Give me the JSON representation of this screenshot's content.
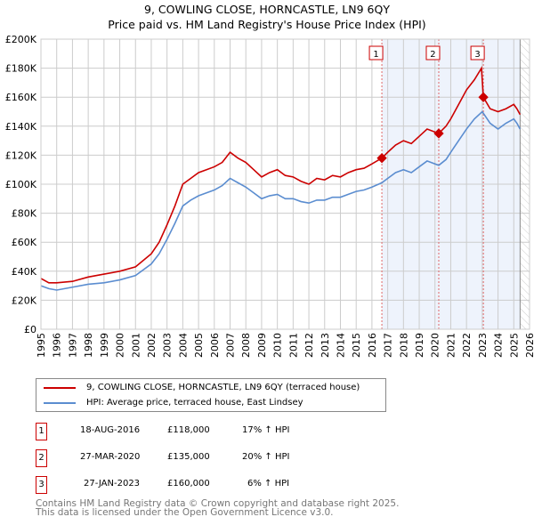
{
  "chart_data": {
    "type": "line",
    "title": "9, COWLING CLOSE, HORNCASTLE, LN9 6QY",
    "subtitle": "Price paid vs. HM Land Registry's House Price Index (HPI)",
    "xlim": [
      1995,
      2026
    ],
    "ylim": [
      0,
      200000
    ],
    "x_ticks": [
      "1995",
      "1996",
      "1997",
      "1998",
      "1999",
      "2000",
      "2001",
      "2002",
      "2003",
      "2004",
      "2005",
      "2006",
      "2007",
      "2008",
      "2009",
      "2010",
      "2011",
      "2012",
      "2013",
      "2014",
      "2015",
      "2016",
      "2017",
      "2018",
      "2019",
      "2020",
      "2021",
      "2022",
      "2023",
      "2024",
      "2025",
      "2026"
    ],
    "y_ticks": [
      "£0",
      "£20K",
      "£40K",
      "£60K",
      "£80K",
      "£100K",
      "£120K",
      "£140K",
      "£160K",
      "£180K",
      "£200K"
    ],
    "grid": true,
    "series": [
      {
        "name": "9, COWLING CLOSE, HORNCASTLE, LN9 6QY (terraced house)",
        "color": "#cc0000",
        "x": [
          1995,
          1995.5,
          1996,
          1997,
          1998,
          1999,
          2000,
          2001,
          2002,
          2002.5,
          2003,
          2003.5,
          2004,
          2004.5,
          2005,
          2005.5,
          2006,
          2006.5,
          2007,
          2007.5,
          2008,
          2008.5,
          2009,
          2009.5,
          2010,
          2010.5,
          2011,
          2011.5,
          2012,
          2012.5,
          2013,
          2013.5,
          2014,
          2014.5,
          2015,
          2015.5,
          2016,
          2016.63,
          2017,
          2017.5,
          2018,
          2018.5,
          2019,
          2019.5,
          2020.24,
          2020.7,
          2021,
          2021.5,
          2022,
          2022.5,
          2022.95,
          2023.07,
          2023.5,
          2024,
          2024.5,
          2025,
          2025.2,
          2025.4
        ],
        "y": [
          35000,
          32000,
          32000,
          33000,
          36000,
          38000,
          40000,
          43000,
          52000,
          60000,
          72000,
          85000,
          100000,
          104000,
          108000,
          110000,
          112000,
          115000,
          122000,
          118000,
          115000,
          110000,
          105000,
          108000,
          110000,
          106000,
          105000,
          102000,
          100000,
          104000,
          103000,
          106000,
          105000,
          108000,
          110000,
          111000,
          114000,
          118000,
          122000,
          127000,
          130000,
          128000,
          133000,
          138000,
          135000,
          140000,
          145000,
          155000,
          165000,
          172000,
          180000,
          160000,
          152000,
          150000,
          152000,
          155000,
          152000,
          148000
        ]
      },
      {
        "name": "HPI: Average price, terraced house, East Lindsey",
        "color": "#5b8dd0",
        "x": [
          1995,
          1995.5,
          1996,
          1997,
          1998,
          1999,
          2000,
          2001,
          2002,
          2002.5,
          2003,
          2003.5,
          2004,
          2004.5,
          2005,
          2005.5,
          2006,
          2006.5,
          2007,
          2007.5,
          2008,
          2008.5,
          2009,
          2009.5,
          2010,
          2010.5,
          2011,
          2011.5,
          2012,
          2012.5,
          2013,
          2013.5,
          2014,
          2014.5,
          2015,
          2015.5,
          2016,
          2016.63,
          2017,
          2017.5,
          2018,
          2018.5,
          2019,
          2019.5,
          2020.24,
          2020.7,
          2021,
          2021.5,
          2022,
          2022.5,
          2023,
          2023.5,
          2024,
          2024.5,
          2025,
          2025.2,
          2025.4
        ],
        "y": [
          30000,
          28000,
          27000,
          29000,
          31000,
          32000,
          34000,
          37000,
          45000,
          52000,
          62000,
          73000,
          85000,
          89000,
          92000,
          94000,
          96000,
          99000,
          104000,
          101000,
          98000,
          94000,
          90000,
          92000,
          93000,
          90000,
          90000,
          88000,
          87000,
          89000,
          89000,
          91000,
          91000,
          93000,
          95000,
          96000,
          98000,
          101000,
          104000,
          108000,
          110000,
          108000,
          112000,
          116000,
          113000,
          117000,
          122000,
          130000,
          138000,
          145000,
          150000,
          142000,
          138000,
          142000,
          145000,
          142000,
          138000
        ]
      }
    ],
    "sales": [
      {
        "label": "1",
        "x": 2016.63,
        "y": 118000,
        "date": "18-AUG-2016",
        "price": "£118,000",
        "hpi": "17% ↑ HPI"
      },
      {
        "label": "2",
        "x": 2020.24,
        "y": 135000,
        "date": "27-MAR-2020",
        "price": "£135,000",
        "hpi": "20% ↑ HPI"
      },
      {
        "label": "3",
        "x": 2023.07,
        "y": 160000,
        "date": "27-JAN-2023",
        "price": "£160,000",
        "hpi": "6% ↑ HPI"
      }
    ],
    "data_end": 2025.4
  },
  "footer": {
    "line1": "Contains HM Land Registry data © Crown copyright and database right 2025.",
    "line2": "This data is licensed under the Open Government Licence v3.0."
  }
}
